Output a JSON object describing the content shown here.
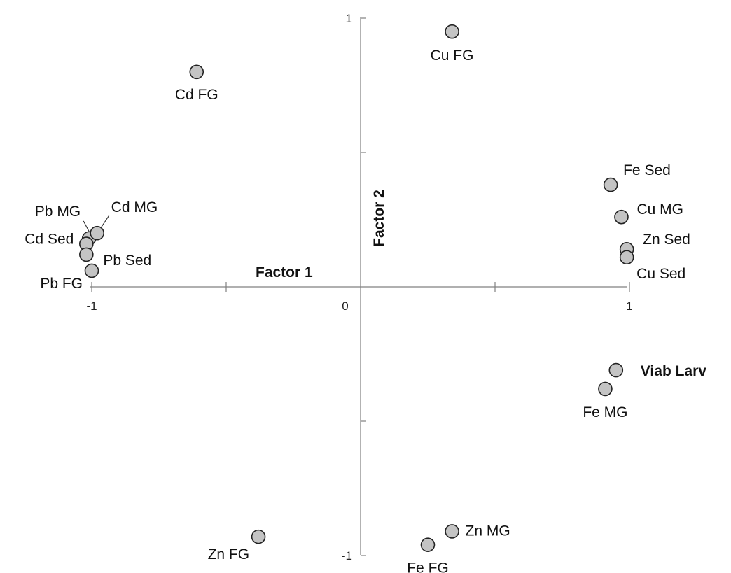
{
  "chart_data": {
    "type": "scatter",
    "title": "",
    "xlabel": "Factor 1",
    "ylabel": "Factor 2",
    "xlim": [
      -1,
      1
    ],
    "ylim": [
      -1,
      1
    ],
    "x_ticks": [
      -1,
      0,
      1
    ],
    "y_ticks": [
      -1,
      1
    ],
    "grid": false,
    "points": [
      {
        "label": "Cu FG",
        "x": 0.34,
        "y": 0.95
      },
      {
        "label": "Cd FG",
        "x": -0.61,
        "y": 0.8
      },
      {
        "label": "Fe Sed",
        "x": 0.93,
        "y": 0.38
      },
      {
        "label": "Cu MG",
        "x": 0.97,
        "y": 0.26
      },
      {
        "label": "Zn Sed",
        "x": 0.99,
        "y": 0.14
      },
      {
        "label": "Cu Sed",
        "x": 0.99,
        "y": 0.11
      },
      {
        "label": "Pb MG",
        "x": -1.01,
        "y": 0.18
      },
      {
        "label": "Cd MG",
        "x": -0.98,
        "y": 0.2
      },
      {
        "label": "Cd Sed",
        "x": -1.02,
        "y": 0.16
      },
      {
        "label": "Pb Sed",
        "x": -1.02,
        "y": 0.12
      },
      {
        "label": "Pb FG",
        "x": -1.0,
        "y": 0.06
      },
      {
        "label": "Viab Larv",
        "x": 0.95,
        "y": -0.31
      },
      {
        "label": "Fe MG",
        "x": 0.91,
        "y": -0.38
      },
      {
        "label": "Zn FG",
        "x": -0.38,
        "y": -0.93
      },
      {
        "label": "Zn MG",
        "x": 0.34,
        "y": -0.91
      },
      {
        "label": "Fe FG",
        "x": 0.25,
        "y": -0.96
      }
    ]
  }
}
